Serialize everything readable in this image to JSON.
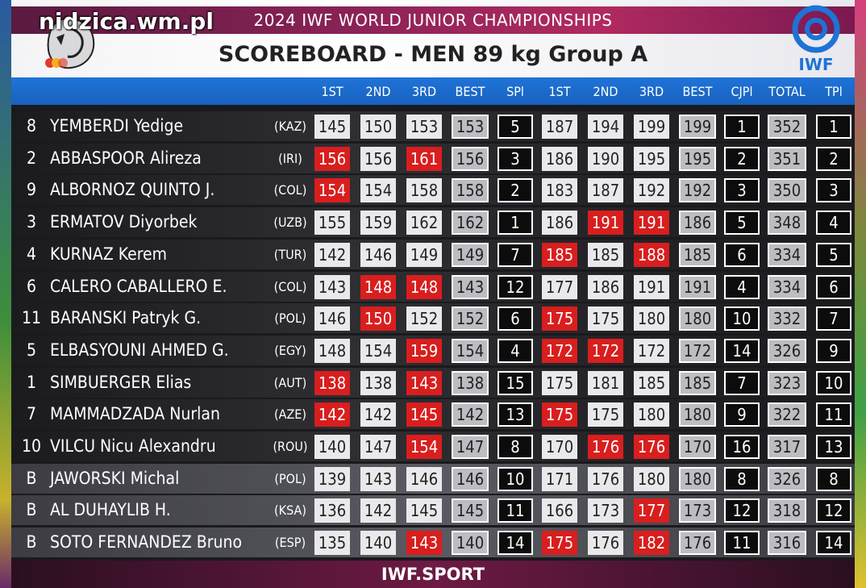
{
  "header": {
    "championship": "2024 IWF WORLD JUNIOR CHAMPIONSHIPS",
    "scoreboard_title": "SCOREBOARD - MEN 89 kg Group A",
    "watermark": "nidzica.wm.pl",
    "logo_text": "IWF"
  },
  "columns": [
    "1ST",
    "2ND",
    "3RD",
    "BEST",
    "SPl",
    "1ST",
    "2ND",
    "3RD",
    "BEST",
    "CJPl",
    "TOTAL",
    "TPl"
  ],
  "colors": {
    "fail": "#d91e1e",
    "header_blue": "#1f73d8",
    "good": "#e9e9ec"
  },
  "athletes": [
    {
      "lot": "8",
      "name": "YEMBERDI Yedige",
      "nat": "(KAZ)",
      "sn": [
        "145",
        "150",
        "153"
      ],
      "sn_fail": [
        false,
        false,
        false
      ],
      "sn_best": "153",
      "spl": "5",
      "cj": [
        "187",
        "194",
        "199"
      ],
      "cj_fail": [
        false,
        false,
        false
      ],
      "cj_best": "199",
      "cjpl": "1",
      "total": "352",
      "tpl": "1"
    },
    {
      "lot": "2",
      "name": "ABBASPOOR Alireza",
      "nat": "(IRI)",
      "sn": [
        "156",
        "156",
        "161"
      ],
      "sn_fail": [
        true,
        false,
        true
      ],
      "sn_best": "156",
      "spl": "3",
      "cj": [
        "186",
        "190",
        "195"
      ],
      "cj_fail": [
        false,
        false,
        false
      ],
      "cj_best": "195",
      "cjpl": "2",
      "total": "351",
      "tpl": "2"
    },
    {
      "lot": "9",
      "name": "ALBORNOZ QUINTO J.",
      "nat": "(COL)",
      "sn": [
        "154",
        "154",
        "158"
      ],
      "sn_fail": [
        true,
        false,
        false
      ],
      "sn_best": "158",
      "spl": "2",
      "cj": [
        "183",
        "187",
        "192"
      ],
      "cj_fail": [
        false,
        false,
        false
      ],
      "cj_best": "192",
      "cjpl": "3",
      "total": "350",
      "tpl": "3"
    },
    {
      "lot": "3",
      "name": "ERMATOV Diyorbek",
      "nat": "(UZB)",
      "sn": [
        "155",
        "159",
        "162"
      ],
      "sn_fail": [
        false,
        false,
        false
      ],
      "sn_best": "162",
      "spl": "1",
      "cj": [
        "186",
        "191",
        "191"
      ],
      "cj_fail": [
        false,
        true,
        true
      ],
      "cj_best": "186",
      "cjpl": "5",
      "total": "348",
      "tpl": "4"
    },
    {
      "lot": "4",
      "name": "KURNAZ Kerem",
      "nat": "(TUR)",
      "sn": [
        "142",
        "146",
        "149"
      ],
      "sn_fail": [
        false,
        false,
        false
      ],
      "sn_best": "149",
      "spl": "7",
      "cj": [
        "185",
        "185",
        "188"
      ],
      "cj_fail": [
        true,
        false,
        true
      ],
      "cj_best": "185",
      "cjpl": "6",
      "total": "334",
      "tpl": "5"
    },
    {
      "lot": "6",
      "name": "CALERO CABALLERO E.",
      "nat": "(COL)",
      "sn": [
        "143",
        "148",
        "148"
      ],
      "sn_fail": [
        false,
        true,
        true
      ],
      "sn_best": "143",
      "spl": "12",
      "cj": [
        "177",
        "186",
        "191"
      ],
      "cj_fail": [
        false,
        false,
        false
      ],
      "cj_best": "191",
      "cjpl": "4",
      "total": "334",
      "tpl": "6"
    },
    {
      "lot": "11",
      "name": "BARANSKI Patryk G.",
      "nat": "(POL)",
      "sn": [
        "146",
        "150",
        "152"
      ],
      "sn_fail": [
        false,
        true,
        false
      ],
      "sn_best": "152",
      "spl": "6",
      "cj": [
        "175",
        "175",
        "180"
      ],
      "cj_fail": [
        true,
        false,
        false
      ],
      "cj_best": "180",
      "cjpl": "10",
      "total": "332",
      "tpl": "7"
    },
    {
      "lot": "5",
      "name": "ELBASYOUNI AHMED G.",
      "nat": "(EGY)",
      "sn": [
        "148",
        "154",
        "159"
      ],
      "sn_fail": [
        false,
        false,
        true
      ],
      "sn_best": "154",
      "spl": "4",
      "cj": [
        "172",
        "172",
        "172"
      ],
      "cj_fail": [
        true,
        true,
        false
      ],
      "cj_best": "172",
      "cjpl": "14",
      "total": "326",
      "tpl": "9"
    },
    {
      "lot": "1",
      "name": "SIMBUERGER Elias",
      "nat": "(AUT)",
      "sn": [
        "138",
        "138",
        "143"
      ],
      "sn_fail": [
        true,
        false,
        true
      ],
      "sn_best": "138",
      "spl": "15",
      "cj": [
        "175",
        "181",
        "185"
      ],
      "cj_fail": [
        false,
        false,
        false
      ],
      "cj_best": "185",
      "cjpl": "7",
      "total": "323",
      "tpl": "10"
    },
    {
      "lot": "7",
      "name": "MAMMADZADA Nurlan",
      "nat": "(AZE)",
      "sn": [
        "142",
        "142",
        "145"
      ],
      "sn_fail": [
        true,
        false,
        true
      ],
      "sn_best": "142",
      "spl": "13",
      "cj": [
        "175",
        "175",
        "180"
      ],
      "cj_fail": [
        true,
        false,
        false
      ],
      "cj_best": "180",
      "cjpl": "9",
      "total": "322",
      "tpl": "11"
    },
    {
      "lot": "10",
      "name": "VILCU Nicu Alexandru",
      "nat": "(ROU)",
      "sn": [
        "140",
        "147",
        "154"
      ],
      "sn_fail": [
        false,
        false,
        true
      ],
      "sn_best": "147",
      "spl": "8",
      "cj": [
        "170",
        "176",
        "176"
      ],
      "cj_fail": [
        false,
        true,
        true
      ],
      "cj_best": "170",
      "cjpl": "16",
      "total": "317",
      "tpl": "13"
    },
    {
      "lot": "B",
      "name": "JAWORSKI Michal",
      "nat": "(POL)",
      "sn": [
        "139",
        "143",
        "146"
      ],
      "sn_fail": [
        false,
        false,
        false
      ],
      "sn_best": "146",
      "spl": "10",
      "cj": [
        "171",
        "176",
        "180"
      ],
      "cj_fail": [
        false,
        false,
        false
      ],
      "cj_best": "180",
      "cjpl": "8",
      "total": "326",
      "tpl": "8"
    },
    {
      "lot": "B",
      "name": "AL DUHAYLIB H.",
      "nat": "(KSA)",
      "sn": [
        "136",
        "142",
        "145"
      ],
      "sn_fail": [
        false,
        false,
        false
      ],
      "sn_best": "145",
      "spl": "11",
      "cj": [
        "166",
        "173",
        "177"
      ],
      "cj_fail": [
        false,
        false,
        true
      ],
      "cj_best": "173",
      "cjpl": "12",
      "total": "318",
      "tpl": "12"
    },
    {
      "lot": "B",
      "name": "SOTO FERNANDEZ Bruno",
      "nat": "(ESP)",
      "sn": [
        "135",
        "140",
        "143"
      ],
      "sn_fail": [
        false,
        false,
        true
      ],
      "sn_best": "140",
      "spl": "14",
      "cj": [
        "175",
        "176",
        "182"
      ],
      "cj_fail": [
        true,
        false,
        true
      ],
      "cj_best": "176",
      "cjpl": "11",
      "total": "316",
      "tpl": "14"
    }
  ],
  "footer": {
    "text": "IWF.SPORT"
  }
}
